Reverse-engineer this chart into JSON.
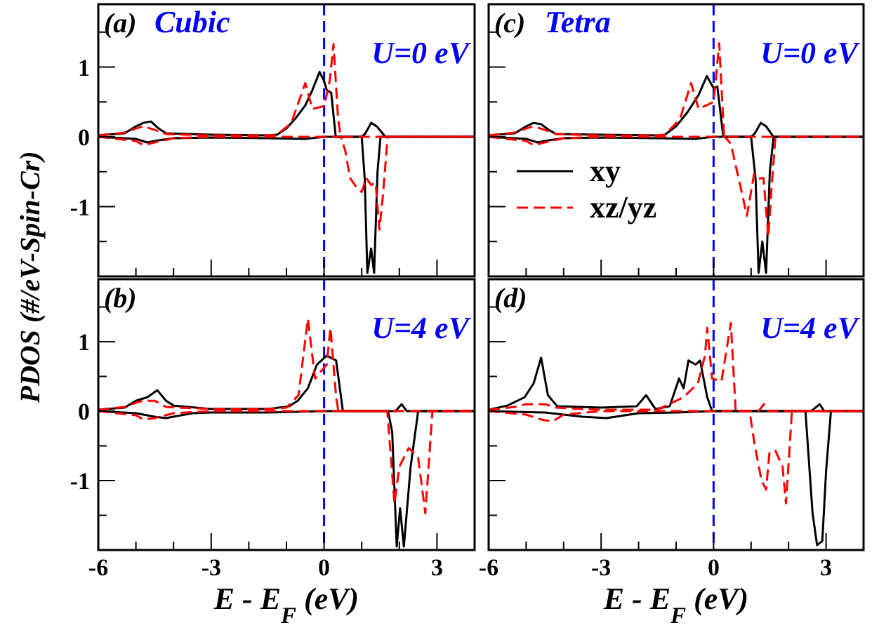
{
  "chart_data": [
    {
      "type": "line",
      "annotations": [
        "(a)",
        "Cubic",
        "U=0 eV"
      ],
      "ylabel": "PDOS (#/eV-Spin-Cr)",
      "xlim": [
        -6,
        4
      ],
      "ylim": [
        -2,
        1.9
      ],
      "tick_labels": "y",
      "legend": false,
      "xticks": [
        -6,
        {
          "value": -5,
          "label": null
        },
        {
          "value": -4,
          "label": null
        },
        -3,
        {
          "value": -2,
          "label": null
        },
        {
          "value": -1,
          "label": null
        },
        0,
        {
          "value": 1,
          "label": null
        },
        {
          "value": 2,
          "label": null
        },
        3
      ],
      "yticks": [
        {
          "value": -1.5,
          "label": null
        },
        -1,
        {
          "value": -0.5,
          "label": null
        },
        0,
        {
          "value": 0.5,
          "label": null
        },
        1,
        {
          "value": 1.5,
          "label": null
        }
      ],
      "ref_lines": [
        {
          "axis": "x",
          "value": 0,
          "color": "#0000ff",
          "line_style": "dashed"
        }
      ],
      "series": [
        {
          "color": "#000000",
          "line_style": "solid",
          "x": [
            -6,
            -5.3,
            -5,
            -4.8,
            -4.6,
            -4.4,
            -4.2,
            -3,
            -1.5,
            -1.25,
            -1,
            -0.75,
            -0.5,
            -0.31,
            -0.12,
            0,
            0.07,
            0.19,
            0.31,
            0.5,
            1.0,
            1.1,
            1.25,
            1.4,
            1.63,
            2,
            4
          ],
          "values": [
            0.02,
            0.05,
            0.15,
            0.2,
            0.22,
            0.12,
            0.05,
            0.03,
            0.02,
            0.03,
            0.12,
            0.27,
            0.45,
            0.67,
            0.93,
            0.8,
            0.67,
            0.63,
            0,
            0,
            0,
            0.05,
            0.2,
            0.15,
            0,
            0,
            0
          ]
        },
        {
          "color": "#000000",
          "line_style": "solid",
          "x": [
            -6,
            -5,
            -4.7,
            -4.4,
            -4,
            -3,
            -1.5,
            -0.5,
            0,
            0.5,
            1.0,
            1.08,
            1.15,
            1.25,
            1.33,
            1.42,
            1.5,
            2,
            4
          ],
          "values": [
            0,
            -0.03,
            -0.08,
            -0.05,
            -0.02,
            -0.01,
            -0.02,
            -0.03,
            0,
            0,
            0,
            -0.6,
            -1.95,
            -1.6,
            -1.95,
            -0.5,
            0,
            0,
            0
          ]
        },
        {
          "color": "#ff0000",
          "line_style": "dashed",
          "x": [
            -6,
            -5.3,
            -5,
            -4.8,
            -4.5,
            -4.2,
            -3,
            -1.5,
            -1.25,
            -0.87,
            -0.5,
            -0.31,
            0,
            0.15,
            0.25,
            0.37,
            0.44,
            1,
            2,
            4
          ],
          "values": [
            0.02,
            0.06,
            0.12,
            0.15,
            0.1,
            0.04,
            0.02,
            0.02,
            0.03,
            0.2,
            0.77,
            0.4,
            0.44,
            0.8,
            1.33,
            0.28,
            0,
            0,
            0,
            0
          ]
        },
        {
          "color": "#ff0000",
          "line_style": "dashed",
          "x": [
            -6,
            -5,
            -4.8,
            -4.5,
            -4,
            -3,
            0,
            0.44,
            0.56,
            0.69,
            0.87,
            1.0,
            1.12,
            1.25,
            1.37,
            1.47,
            1.56,
            1.69,
            2,
            4
          ],
          "values": [
            0,
            -0.06,
            -0.12,
            -0.08,
            -0.02,
            0,
            0,
            0,
            -0.19,
            -0.59,
            -0.73,
            -0.79,
            -0.59,
            -0.69,
            -0.66,
            -1.33,
            -0.86,
            0,
            0,
            0
          ]
        }
      ]
    },
    {
      "type": "line",
      "annotations": [
        "(c)",
        "Tetra",
        "U=0 eV"
      ],
      "xlim": [
        -6,
        4
      ],
      "ylim": [
        -2,
        1.9
      ],
      "tick_labels": false,
      "legend": "bottom left",
      "xticks": [
        -6,
        {
          "value": -5,
          "label": null
        },
        {
          "value": -4,
          "label": null
        },
        -3,
        {
          "value": -2,
          "label": null
        },
        {
          "value": -1,
          "label": null
        },
        0,
        {
          "value": 1,
          "label": null
        },
        {
          "value": 2,
          "label": null
        },
        3
      ],
      "yticks": [
        {
          "value": -1.5,
          "label": null
        },
        -1,
        {
          "value": -0.5,
          "label": null
        },
        0,
        {
          "value": 0.5,
          "label": null
        },
        1,
        {
          "value": 1.5,
          "label": null
        }
      ],
      "ref_lines": [
        {
          "axis": "x",
          "value": 0,
          "color": "#0000ff",
          "line_style": "dashed"
        }
      ],
      "series": [
        {
          "name": "xy",
          "color": "#000000",
          "line_style": "solid",
          "x": [
            -6,
            -5.3,
            -5,
            -4.8,
            -4.6,
            -4.4,
            -4.2,
            -3,
            -1.5,
            -1.3,
            -1,
            -0.7,
            -0.4,
            -0.18,
            0,
            0.1,
            0.26,
            0.5,
            1.0,
            1.1,
            1.26,
            1.4,
            1.6,
            2,
            4
          ],
          "values": [
            0.02,
            0.05,
            0.15,
            0.2,
            0.18,
            0.1,
            0.04,
            0.03,
            0.02,
            0.03,
            0.15,
            0.35,
            0.6,
            0.87,
            0.7,
            0.72,
            0,
            0,
            0,
            0.05,
            0.2,
            0.15,
            0,
            0,
            0
          ]
        },
        {
          "color": "#000000",
          "line_style": "solid",
          "x": [
            -6,
            -5,
            -4.7,
            -4.4,
            -4,
            -3,
            -1.5,
            -0.5,
            0,
            0.5,
            1.0,
            1.12,
            1.2,
            1.3,
            1.4,
            1.5,
            1.6,
            2,
            4
          ],
          "values": [
            0,
            -0.03,
            -0.08,
            -0.05,
            -0.02,
            -0.01,
            -0.02,
            -0.03,
            0,
            0,
            0,
            -0.6,
            -1.95,
            -1.5,
            -1.95,
            -0.5,
            0,
            0,
            0
          ]
        },
        {
          "name": "xz/yz",
          "color": "#ff0000",
          "line_style": "dashed",
          "x": [
            -6,
            -5.3,
            -5,
            -4.8,
            -4.5,
            -4.2,
            -3,
            -1.5,
            -1.3,
            -0.9,
            -0.6,
            -0.4,
            0,
            0.15,
            0.28,
            1,
            2,
            4
          ],
          "values": [
            0.02,
            0.06,
            0.12,
            0.15,
            0.1,
            0.04,
            0.02,
            0.02,
            0.03,
            0.25,
            0.77,
            0.4,
            0.5,
            1.34,
            0,
            0,
            0,
            0
          ]
        },
        {
          "color": "#ff0000",
          "line_style": "dashed",
          "x": [
            -6,
            -5,
            -4.8,
            -4.5,
            -4,
            -3,
            0,
            0.3,
            0.46,
            0.64,
            0.89,
            1.08,
            1.2,
            1.33,
            1.46,
            1.55,
            1.65,
            2,
            4
          ],
          "values": [
            0,
            -0.06,
            -0.12,
            -0.08,
            -0.02,
            0,
            0,
            0,
            -0.1,
            -0.53,
            -1.13,
            -0.53,
            -0.6,
            -0.59,
            -1.43,
            -0.7,
            0,
            0,
            0
          ]
        }
      ]
    },
    {
      "type": "line",
      "annotations": [
        "(b)",
        "U=4 eV"
      ],
      "xlabel": "E - E$_{F}$ (eV)",
      "xlim": [
        -6,
        4
      ],
      "ylim": [
        -2,
        1.9
      ],
      "legend": false,
      "xticks": [
        -6,
        {
          "value": -5,
          "label": null
        },
        {
          "value": -4,
          "label": null
        },
        -3,
        {
          "value": -2,
          "label": null
        },
        {
          "value": -1,
          "label": null
        },
        0,
        {
          "value": 1,
          "label": null
        },
        {
          "value": 2,
          "label": null
        },
        3
      ],
      "yticks": [
        {
          "value": -1.5,
          "label": null
        },
        -1,
        {
          "value": -0.5,
          "label": null
        },
        0,
        {
          "value": 0.5,
          "label": null
        },
        1,
        {
          "value": 1.5,
          "label": null
        }
      ],
      "ref_lines": [
        {
          "axis": "x",
          "value": 0,
          "color": "#0000ff",
          "line_style": "dashed"
        }
      ],
      "series": [
        {
          "color": "#000000",
          "line_style": "solid",
          "x": [
            -6,
            -5.3,
            -5,
            -4.7,
            -4.43,
            -4.2,
            -4,
            -3,
            -1.5,
            -0.93,
            -0.7,
            -0.43,
            -0.19,
            0.07,
            0.32,
            0.5,
            1.5,
            1.9,
            2.06,
            2.2,
            2.5,
            4
          ],
          "values": [
            0.02,
            0.05,
            0.15,
            0.2,
            0.3,
            0.15,
            0.08,
            0.03,
            0.03,
            0.07,
            0.15,
            0.33,
            0.67,
            0.8,
            0.73,
            0,
            0,
            0,
            0.1,
            0,
            0,
            0
          ]
        },
        {
          "color": "#000000",
          "line_style": "solid",
          "x": [
            -6,
            -5,
            -4.5,
            -4.2,
            -3.5,
            -3,
            -1.5,
            0,
            0.5,
            1.7,
            1.81,
            1.93,
            2.02,
            2.12,
            2.3,
            2.5,
            3,
            4
          ],
          "values": [
            0,
            -0.03,
            -0.08,
            -0.1,
            -0.03,
            -0.02,
            -0.02,
            0,
            0,
            0,
            -0.3,
            -1.95,
            -1.4,
            -1.95,
            -0.8,
            0,
            0,
            0
          ]
        },
        {
          "color": "#ff0000",
          "line_style": "dashed",
          "x": [
            -6,
            -5.3,
            -5,
            -4.8,
            -4.5,
            -4.2,
            -3,
            -1.5,
            -1,
            -0.68,
            -0.43,
            -0.24,
            0.07,
            0.17,
            0.32,
            0.38,
            1,
            2,
            4
          ],
          "values": [
            0.02,
            0.06,
            0.12,
            0.15,
            0.15,
            0.06,
            0.03,
            0.03,
            0.05,
            0.23,
            1.33,
            0.47,
            0.67,
            1.2,
            0.2,
            0,
            0,
            0,
            0
          ]
        },
        {
          "color": "#ff0000",
          "line_style": "dashed",
          "x": [
            -6,
            -5,
            -4.8,
            -4.5,
            -4,
            -3,
            0,
            1.5,
            1.68,
            1.87,
            2.0,
            2.25,
            2.5,
            2.69,
            2.88,
            3,
            4
          ],
          "values": [
            0,
            -0.06,
            -0.12,
            -0.1,
            -0.03,
            0,
            0,
            0,
            0,
            -1.33,
            -0.8,
            -0.53,
            -0.67,
            -1.47,
            0,
            0,
            0
          ]
        }
      ]
    },
    {
      "type": "line",
      "annotations": [
        "(d)",
        "U=4 eV"
      ],
      "xlabel": "E - E$_{F}$ (eV)",
      "xlim": [
        -6,
        4
      ],
      "ylim": [
        -2,
        1.9
      ],
      "tick_labels": "x",
      "legend": false,
      "xticks": [
        -6,
        {
          "value": -5,
          "label": null
        },
        {
          "value": -4,
          "label": null
        },
        -3,
        {
          "value": -2,
          "label": null
        },
        {
          "value": -1,
          "label": null
        },
        0,
        {
          "value": 1,
          "label": null
        },
        {
          "value": 2,
          "label": null
        },
        3
      ],
      "yticks": [
        {
          "value": -1.5,
          "label": null
        },
        -1,
        {
          "value": -0.5,
          "label": null
        },
        0,
        {
          "value": 0.5,
          "label": null
        },
        1,
        {
          "value": 1.5,
          "label": null
        }
      ],
      "ref_lines": [
        {
          "axis": "x",
          "value": 0,
          "color": "#0000ff",
          "line_style": "dashed"
        }
      ],
      "series": [
        {
          "color": "#000000",
          "line_style": "solid",
          "x": [
            -6,
            -5.5,
            -5.04,
            -4.8,
            -4.6,
            -4.42,
            -4.17,
            -3,
            -2.05,
            -1.8,
            -1.55,
            -1.17,
            -0.92,
            -0.8,
            -0.67,
            -0.48,
            -0.36,
            -0.17,
            -0.04,
            1,
            2.6,
            2.83,
            2.95,
            4
          ],
          "values": [
            0.02,
            0.08,
            0.2,
            0.4,
            0.77,
            0.23,
            0.07,
            0.05,
            0.07,
            0.23,
            0.03,
            0.07,
            0.47,
            0.33,
            0.73,
            0.67,
            0.73,
            0.2,
            0,
            0,
            0,
            0.1,
            0,
            0
          ]
        },
        {
          "color": "#000000",
          "line_style": "solid",
          "x": [
            -6,
            -4.5,
            -3.5,
            -2.86,
            -2,
            -1,
            0,
            1,
            2.45,
            2.64,
            2.76,
            2.9,
            3.0,
            3.13,
            3.5,
            4
          ],
          "values": [
            0,
            -0.02,
            -0.08,
            -0.1,
            -0.03,
            -0.02,
            0,
            0,
            0,
            -1.47,
            -1.93,
            -1.87,
            -0.87,
            0,
            0,
            0
          ]
        },
        {
          "color": "#ff0000",
          "line_style": "dashed",
          "x": [
            -6,
            -5.3,
            -5,
            -4.5,
            -4.2,
            -3,
            -1.5,
            -0.8,
            -0.42,
            -0.23,
            -0.17,
            -0.04,
            0.21,
            0.4,
            0.46,
            0.59,
            1.2,
            1.34,
            1.45,
            2,
            4
          ],
          "values": [
            0.02,
            0.06,
            0.1,
            0.1,
            0.05,
            0.02,
            0.02,
            0.2,
            0.4,
            0.8,
            1.2,
            0.47,
            0.43,
            1.07,
            1.27,
            0,
            0,
            0.1,
            0,
            0,
            0
          ]
        },
        {
          "color": "#ff0000",
          "line_style": "dashed",
          "x": [
            -6,
            -5,
            -4.6,
            -4.3,
            -4,
            -3,
            0,
            0.96,
            1.09,
            1.28,
            1.4,
            1.49,
            1.65,
            1.84,
            1.93,
            2.09,
            3,
            4
          ],
          "values": [
            0,
            -0.05,
            -0.12,
            -0.15,
            -0.05,
            0,
            0,
            0,
            -0.47,
            -1.0,
            -1.13,
            -0.6,
            -0.57,
            -0.8,
            -1.33,
            0,
            0,
            0
          ]
        }
      ]
    }
  ]
}
